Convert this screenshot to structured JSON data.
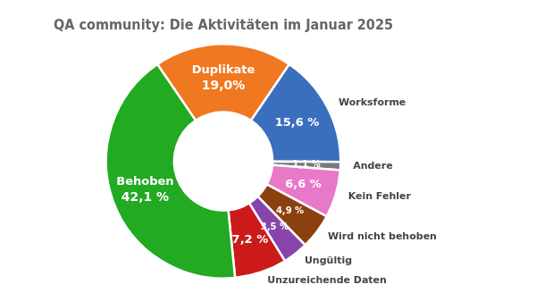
{
  "chart_data": {
    "type": "doughnut",
    "title": "QA community: Die Aktivitäten im Januar 2025",
    "categories": [
      "Duplikate",
      "Worksforme",
      "Andere",
      "Kein Fehler",
      "Wird nicht behoben",
      "Ungültig",
      "Unzureichende Daten",
      "Behoben"
    ],
    "values": [
      19.0,
      15.6,
      1.1,
      6.6,
      4.9,
      3.5,
      7.2,
      42.1
    ],
    "value_labels": [
      "19,0%",
      "15,6 %",
      "1,1 %",
      "6,6 %",
      "4,9 %",
      "3,5 %",
      "7,2 %",
      "42,1 %"
    ],
    "colors": [
      "#f07820",
      "#3a6fbe",
      "#7a7a7a",
      "#e878c8",
      "#8b4010",
      "#8844aa",
      "#cc1a1a",
      "#22aa22"
    ],
    "data_labels": true
  }
}
